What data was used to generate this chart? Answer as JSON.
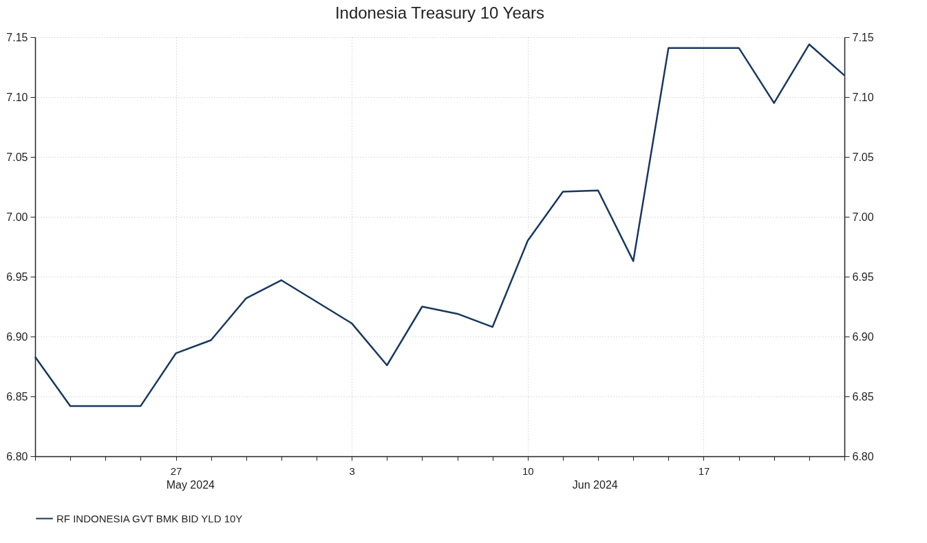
{
  "chart_data": {
    "type": "line",
    "title": "Indonesia Treasury 10 Years",
    "categories": [
      null,
      null,
      null,
      null,
      "27",
      null,
      null,
      null,
      null,
      "3",
      null,
      null,
      null,
      null,
      "10",
      null,
      null,
      null,
      null,
      "17",
      null,
      null,
      null,
      null
    ],
    "series": [
      {
        "name": "RF INDONESIA GVT BMK BID YLD 10Y",
        "color": "#17375e",
        "values": [
          6.883,
          6.842,
          6.842,
          6.842,
          6.886,
          6.897,
          6.932,
          6.947,
          6.929,
          6.911,
          6.876,
          6.925,
          6.919,
          6.908,
          6.98,
          7.021,
          7.022,
          6.963,
          7.141,
          7.141,
          7.141,
          7.095,
          7.144,
          7.118
        ]
      }
    ],
    "ylim": [
      6.8,
      7.15
    ],
    "yticks": [
      {
        "value": 6.8,
        "label": "6.80"
      },
      {
        "value": 6.85,
        "label": "6.85"
      },
      {
        "value": 6.9,
        "label": "6.90"
      },
      {
        "value": 6.95,
        "label": "6.95"
      },
      {
        "value": 7.0,
        "label": "7.00"
      },
      {
        "value": 7.05,
        "label": "7.05"
      },
      {
        "value": 7.1,
        "label": "7.10"
      },
      {
        "value": 7.15,
        "label": "7.15"
      }
    ],
    "y2lim": [
      6.8,
      7.15
    ],
    "y2ticks": [
      {
        "value": 6.8,
        "label": "6.80"
      },
      {
        "value": 6.85,
        "label": "6.85"
      },
      {
        "value": 6.9,
        "label": "6.90"
      },
      {
        "value": 6.95,
        "label": "6.95"
      },
      {
        "value": 7.0,
        "label": "7.00"
      },
      {
        "value": 7.05,
        "label": "7.05"
      },
      {
        "value": 7.1,
        "label": "7.10"
      },
      {
        "value": 7.15,
        "label": "7.15"
      }
    ],
    "annotations": [
      "May 2024",
      "Jun 2024"
    ],
    "grid": true,
    "legend": "bottom left",
    "line_style": "solid"
  }
}
